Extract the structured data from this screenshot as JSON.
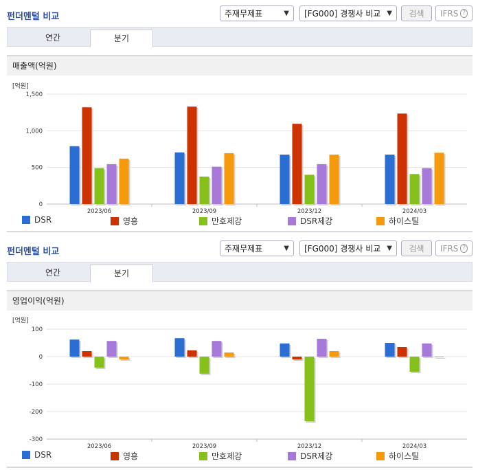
{
  "colors": {
    "DSR": "#2a6ed4",
    "영흥": "#cc3300",
    "만호제강": "#86c01a",
    "DSR제강": "#a779d8",
    "하이스틸": "#f59a0c"
  },
  "panels": [
    {
      "title": "펀더멘털 비교",
      "select_statement": "주재무제표",
      "select_compare": "[FG000] 경쟁사 비교",
      "search_label": "검색",
      "ifrs_label": "IFRS",
      "ifrs_help": "?",
      "tabs": [
        "연간",
        "분기"
      ],
      "active_tab": "분기",
      "section_title": "매출액(억원)",
      "unit": "[억원]"
    },
    {
      "title": "펀더멘털 비교",
      "select_statement": "주재무제표",
      "select_compare": "[FG000] 경쟁사 비교",
      "search_label": "검색",
      "ifrs_label": "IFRS",
      "ifrs_help": "?",
      "tabs": [
        "연간",
        "분기"
      ],
      "active_tab": "분기",
      "section_title": "영업이익(억원)",
      "unit": "[억원]"
    }
  ],
  "chart_data": [
    {
      "type": "bar",
      "title": "매출액(억원)",
      "categories": [
        "2023/06",
        "2023/09",
        "2023/12",
        "2024/03"
      ],
      "ylim": [
        0,
        1500
      ],
      "yticks": [
        0,
        500,
        1000,
        1500
      ],
      "ytick_labels": [
        "0",
        "500",
        "1,000",
        "1,500"
      ],
      "legend_position": "bottom",
      "series": [
        {
          "name": "DSR",
          "values": [
            790,
            705,
            675,
            675
          ]
        },
        {
          "name": "영흥",
          "values": [
            1320,
            1330,
            1095,
            1235
          ]
        },
        {
          "name": "만호제강",
          "values": [
            490,
            375,
            400,
            410
          ]
        },
        {
          "name": "DSR제강",
          "values": [
            545,
            510,
            545,
            490
          ]
        },
        {
          "name": "하이스틸",
          "values": [
            620,
            695,
            675,
            700
          ]
        }
      ]
    },
    {
      "type": "bar",
      "title": "영업이익(억원)",
      "categories": [
        "2023/06",
        "2023/09",
        "2023/12",
        "2024/03"
      ],
      "ylim": [
        -300,
        100
      ],
      "yticks": [
        -300,
        -200,
        -100,
        0,
        100
      ],
      "ytick_labels": [
        "-300",
        "-200",
        "-100",
        "0",
        "100"
      ],
      "legend_position": "bottom",
      "series": [
        {
          "name": "DSR",
          "values": [
            62,
            67,
            48,
            50
          ]
        },
        {
          "name": "영흥",
          "values": [
            20,
            23,
            -10,
            35
          ]
        },
        {
          "name": "만호제강",
          "values": [
            -40,
            -62,
            -235,
            -55
          ]
        },
        {
          "name": "DSR제강",
          "values": [
            57,
            57,
            65,
            48
          ]
        },
        {
          "name": "하이스틸",
          "values": [
            -10,
            15,
            20,
            0
          ]
        }
      ]
    }
  ]
}
